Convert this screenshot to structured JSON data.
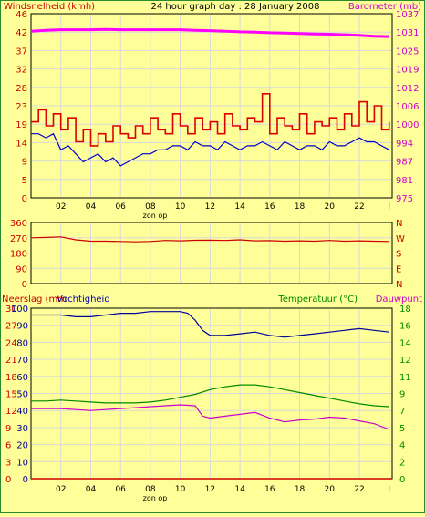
{
  "colors": {
    "background": "#ffff99",
    "plot_bg": "#ffff99",
    "grid": "#d9d9d9",
    "axis": "#000000",
    "wind_left_axis": "#cc0000",
    "barometer_axis": "#cc00cc",
    "direction_axis": "#cc0000",
    "rain_axis": "#cc0000",
    "humidity_axis": "#000099",
    "temperature_axis": "#008800",
    "dewpoint_axis": "#cc00cc",
    "frame": "#2b8a2b"
  },
  "chart_data": [
    {
      "type": "line",
      "title": "24 hour graph day : 28 January 2008",
      "ylabel_left": "Windsnelheid (kmh)",
      "ylabel_right": "Barometer (mb)",
      "x_ticks": [
        "02",
        "04",
        "06",
        "08",
        "10",
        "12",
        "14",
        "16",
        "18",
        "20",
        "22",
        "I"
      ],
      "x_sublabel": "zon op",
      "y_ticks_left": [
        "0",
        "5",
        "9",
        "14",
        "19",
        "23",
        "28",
        "32",
        "37",
        "42",
        "46"
      ],
      "y_ticks_right": [
        "975",
        "981",
        "987",
        "994",
        "1000",
        "1006",
        "1012",
        "1019",
        "1025",
        "1031",
        "1037"
      ],
      "ylim_left": [
        0,
        46
      ],
      "ylim_right": [
        975,
        1037
      ],
      "xlim": [
        0,
        24.2
      ],
      "grid": true,
      "series": [
        {
          "color": "#ff00ff",
          "axis": "right",
          "x": [
            0,
            1,
            2,
            3,
            4,
            5,
            6,
            7,
            8,
            9,
            10,
            11,
            12,
            13,
            14,
            15,
            16,
            17,
            18,
            19,
            20,
            21,
            22,
            23,
            24
          ],
          "values": [
            1031.1,
            1031.4,
            1031.6,
            1031.6,
            1031.6,
            1031.7,
            1031.6,
            1031.6,
            1031.6,
            1031.6,
            1031.6,
            1031.4,
            1031.3,
            1031.1,
            1030.9,
            1030.8,
            1030.6,
            1030.5,
            1030.3,
            1030.2,
            1030.1,
            1029.9,
            1029.7,
            1029.4,
            1029.3
          ]
        },
        {
          "color": "#dd0000",
          "axis": "left",
          "x": [
            0,
            0.5,
            1,
            1.5,
            2,
            2.5,
            3,
            3.5,
            4,
            4.5,
            5,
            5.5,
            6,
            6.5,
            7,
            7.5,
            8,
            8.5,
            9,
            9.5,
            10,
            10.5,
            11,
            11.5,
            12,
            12.5,
            13,
            13.5,
            14,
            14.5,
            15,
            15.5,
            16,
            16.5,
            17,
            17.5,
            18,
            18.5,
            19,
            19.5,
            20,
            20.5,
            21,
            21.5,
            22,
            22.5,
            23,
            23.5,
            24
          ],
          "values": [
            19,
            22,
            18,
            21,
            17,
            20,
            14,
            17,
            13,
            16,
            14,
            18,
            16,
            15,
            18,
            16,
            20,
            17,
            16,
            21,
            18,
            16,
            20,
            17,
            19,
            16,
            21,
            18,
            17,
            20,
            19,
            26,
            16,
            20,
            18,
            17,
            21,
            16,
            19,
            18,
            20,
            17,
            21,
            18,
            24,
            19,
            23,
            17,
            19
          ]
        },
        {
          "color": "#0000cc",
          "axis": "left",
          "x": [
            0,
            0.5,
            1,
            1.5,
            2,
            2.5,
            3,
            3.5,
            4,
            4.5,
            5,
            5.5,
            6,
            6.5,
            7,
            7.5,
            8,
            8.5,
            9,
            9.5,
            10,
            10.5,
            11,
            11.5,
            12,
            12.5,
            13,
            13.5,
            14,
            14.5,
            15,
            15.5,
            16,
            16.5,
            17,
            17.5,
            18,
            18.5,
            19,
            19.5,
            20,
            20.5,
            21,
            21.5,
            22,
            22.5,
            23,
            23.5,
            24
          ],
          "values": [
            16,
            16,
            15,
            16,
            12,
            13,
            11,
            9,
            10,
            11,
            9,
            10,
            8,
            9,
            10,
            11,
            11,
            12,
            12,
            13,
            13,
            12,
            14,
            13,
            13,
            12,
            14,
            13,
            12,
            13,
            13,
            14,
            13,
            12,
            14,
            13,
            12,
            13,
            13,
            12,
            14,
            13,
            13,
            14,
            15,
            14,
            14,
            13,
            12
          ]
        }
      ]
    },
    {
      "type": "line",
      "y_ticks_left": [
        "0",
        "90",
        "180",
        "270",
        "360"
      ],
      "y_ticks_right": [
        "N",
        "E",
        "S",
        "W",
        "N"
      ],
      "ylim_left": [
        0,
        360
      ],
      "xlim": [
        0,
        24.2
      ],
      "grid": true,
      "series": [
        {
          "color": "#cc0000",
          "axis": "left",
          "x": [
            0,
            1,
            2,
            3,
            4,
            5,
            6,
            7,
            8,
            9,
            10,
            11,
            12,
            13,
            14,
            15,
            16,
            17,
            18,
            19,
            20,
            21,
            22,
            23,
            24
          ],
          "values": [
            270,
            272,
            275,
            258,
            250,
            250,
            248,
            246,
            248,
            254,
            252,
            255,
            256,
            254,
            258,
            252,
            253,
            250,
            252,
            250,
            254,
            250,
            252,
            250,
            248
          ]
        }
      ]
    },
    {
      "type": "line",
      "ylabel_left": "Neerslag (mm",
      "ylabel_left2": "Vochtigheid",
      "ylabel_right": "Temperatuur (°C)",
      "ylabel_right2": "Dauwpunt",
      "x_ticks": [
        "02",
        "04",
        "06",
        "08",
        "10",
        "12",
        "14",
        "16",
        "18",
        "20",
        "22",
        "I"
      ],
      "x_sublabel": "zon op",
      "y_ticks_rain": [
        "0",
        "3",
        "6",
        "9",
        "12",
        "15",
        "18",
        "21",
        "24",
        "27",
        "30"
      ],
      "y_ticks_humidity": [
        "0",
        "10",
        "20",
        "30",
        "40",
        "50",
        "60",
        "70",
        "80",
        "90",
        "100"
      ],
      "y_ticks_right": [
        "0",
        "2",
        "4",
        "5",
        "7",
        "9",
        "11",
        "12",
        "14",
        "16",
        "18"
      ],
      "ylim_humidity": [
        0,
        100
      ],
      "ylim_right": [
        0,
        18
      ],
      "xlim": [
        0,
        24.2
      ],
      "grid": true,
      "series": [
        {
          "color": "#cc0000",
          "axis": "rain",
          "x": [
            0,
            24.2
          ],
          "values": [
            0,
            0
          ]
        },
        {
          "color": "#000099",
          "axis": "humidity",
          "x": [
            0,
            1,
            2,
            3,
            4,
            5,
            6,
            7,
            8,
            9,
            10,
            10.5,
            11,
            11.5,
            12,
            13,
            14,
            15,
            16,
            17,
            18,
            19,
            20,
            21,
            22,
            23,
            24
          ],
          "values": [
            96,
            96,
            96,
            95,
            95,
            96,
            97,
            97,
            98,
            98,
            98,
            97,
            93,
            87,
            84,
            84,
            85,
            86,
            84,
            83,
            84,
            85,
            86,
            87,
            88,
            87,
            86
          ]
        },
        {
          "color": "#008800",
          "axis": "right",
          "x": [
            0,
            1,
            2,
            3,
            4,
            5,
            6,
            7,
            8,
            9,
            10,
            11,
            12,
            13,
            14,
            15,
            16,
            17,
            18,
            19,
            20,
            21,
            22,
            23,
            24
          ],
          "values": [
            8.2,
            8.2,
            8.3,
            8.2,
            8.1,
            8.0,
            8.0,
            8.0,
            8.1,
            8.3,
            8.6,
            8.9,
            9.4,
            9.7,
            9.9,
            9.9,
            9.7,
            9.4,
            9.1,
            8.8,
            8.5,
            8.2,
            7.9,
            7.7,
            7.6
          ]
        },
        {
          "color": "#cc00cc",
          "axis": "right",
          "x": [
            0,
            1,
            2,
            3,
            4,
            5,
            6,
            7,
            8,
            9,
            10,
            11,
            11.5,
            12,
            13,
            14,
            15,
            16,
            17,
            18,
            19,
            20,
            21,
            22,
            23,
            24
          ],
          "values": [
            7.4,
            7.4,
            7.4,
            7.3,
            7.2,
            7.3,
            7.4,
            7.5,
            7.6,
            7.7,
            7.8,
            7.7,
            6.6,
            6.4,
            6.6,
            6.8,
            7.0,
            6.4,
            6.0,
            6.2,
            6.3,
            6.5,
            6.4,
            6.1,
            5.8,
            5.2
          ]
        }
      ]
    }
  ]
}
